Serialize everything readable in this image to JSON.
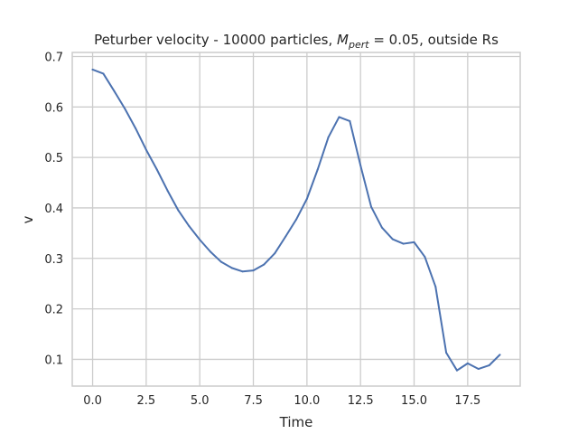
{
  "chart_data": {
    "type": "line",
    "title_prefix": "Peturber velocity - 10000 particles, ",
    "title_math_base": "M",
    "title_math_sub": "pert",
    "title_suffix": " = 0.05, outside Rs",
    "xlabel": "Time",
    "ylabel": "v",
    "xlim": [
      -0.95,
      19.95
    ],
    "ylim": [
      0.047,
      0.708
    ],
    "xticks": [
      0.0,
      2.5,
      5.0,
      7.5,
      10.0,
      12.5,
      15.0,
      17.5
    ],
    "xtick_labels": [
      "0.0",
      "2.5",
      "5.0",
      "7.5",
      "10.0",
      "12.5",
      "15.0",
      "17.5"
    ],
    "yticks": [
      0.1,
      0.2,
      0.3,
      0.4,
      0.5,
      0.6,
      0.7
    ],
    "ytick_labels": [
      "0.1",
      "0.2",
      "0.3",
      "0.4",
      "0.5",
      "0.6",
      "0.7"
    ],
    "grid": true,
    "line_color": "#4c72b0",
    "series": [
      {
        "x": [
          0,
          0.5,
          1,
          1.5,
          2,
          2.5,
          3,
          3.5,
          4,
          4.5,
          5,
          5.5,
          6,
          6.5,
          7,
          7.5,
          8,
          8.5,
          9,
          9.5,
          10,
          10.5,
          11,
          11.5,
          12,
          12.5,
          13,
          13.5,
          14,
          14.5,
          15,
          15.5,
          16,
          16.5,
          17,
          17.5,
          18,
          18.5,
          19
        ],
        "values": [
          0.674,
          0.666,
          0.632,
          0.597,
          0.558,
          0.515,
          0.476,
          0.434,
          0.395,
          0.364,
          0.337,
          0.313,
          0.293,
          0.281,
          0.274,
          0.276,
          0.288,
          0.31,
          0.343,
          0.377,
          0.418,
          0.476,
          0.54,
          0.58,
          0.572,
          0.484,
          0.402,
          0.361,
          0.338,
          0.329,
          0.332,
          0.303,
          0.244,
          0.113,
          0.078,
          0.092,
          0.081,
          0.088,
          0.109
        ]
      }
    ]
  }
}
